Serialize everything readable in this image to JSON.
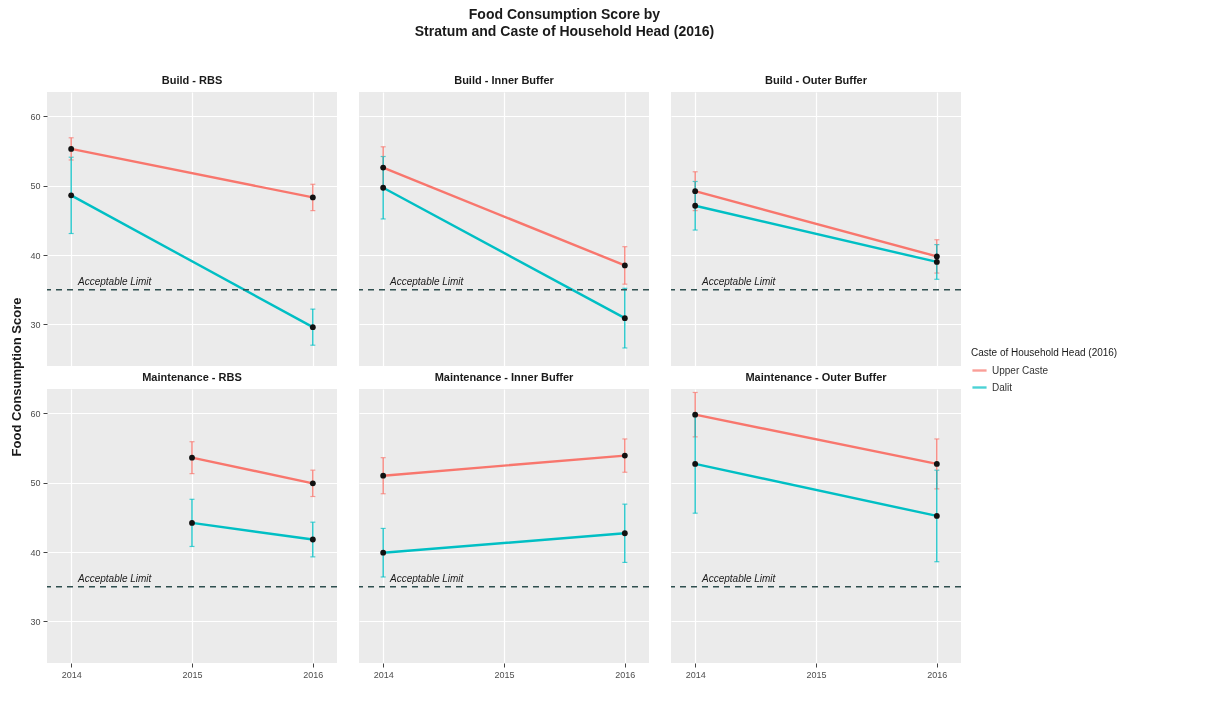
{
  "chart_data": [
    {
      "type": "other",
      "title": "Food Consumption Score by\nStratum and Caste of Household Head (2016)"
    },
    {
      "type": "line",
      "title": "Build - RBS",
      "ylabel": "Food Consumption Score",
      "legend": "right",
      "legend_title": "Caste of Household Head (2016)",
      "tick_labels": "y",
      "grid": true,
      "marker": "circle",
      "x": [
        2014,
        2016
      ],
      "xlim": [
        2013.8,
        2016.2
      ],
      "xticks": [
        2014,
        2015,
        2016
      ],
      "ylim": [
        24,
        63.5
      ],
      "yticks": [
        30,
        40,
        50,
        60
      ],
      "ref_lines": [
        {
          "axis": "y",
          "value": 35,
          "label": "Acceptable Limit",
          "color": "#2f4f4f",
          "line_style": "dashed"
        }
      ],
      "series": [
        {
          "name": "Upper Caste",
          "color": "#f8766d",
          "values": [
            55.3,
            48.3
          ],
          "errors": [
            1.6,
            1.9
          ]
        },
        {
          "name": "Dalit",
          "color": "#00bfc4",
          "values": [
            48.6,
            29.6
          ],
          "errors": [
            5.5,
            2.6
          ]
        }
      ]
    },
    {
      "type": "line",
      "title": "Build - Inner Buffer",
      "tick_labels": false,
      "grid": true,
      "marker": "circle",
      "x": [
        2014,
        2016
      ],
      "xlim": [
        2013.8,
        2016.2
      ],
      "xticks": [
        2014,
        2015,
        2016
      ],
      "ylim": [
        24,
        63.5
      ],
      "yticks": [
        30,
        40,
        50,
        60
      ],
      "ref_lines": [
        {
          "axis": "y",
          "value": 35,
          "label": "Acceptable Limit",
          "color": "#2f4f4f",
          "line_style": "dashed"
        }
      ],
      "series": [
        {
          "name": "Upper Caste",
          "color": "#f8766d",
          "values": [
            52.6,
            38.5
          ],
          "errors": [
            3.0,
            2.7
          ]
        },
        {
          "name": "Dalit",
          "color": "#00bfc4",
          "values": [
            49.7,
            30.9
          ],
          "errors": [
            4.5,
            4.3
          ]
        }
      ]
    },
    {
      "type": "line",
      "title": "Build - Outer Buffer",
      "tick_labels": false,
      "grid": true,
      "marker": "circle",
      "x": [
        2014,
        2016
      ],
      "xlim": [
        2013.8,
        2016.2
      ],
      "xticks": [
        2014,
        2015,
        2016
      ],
      "ylim": [
        24,
        63.5
      ],
      "yticks": [
        30,
        40,
        50,
        60
      ],
      "ref_lines": [
        {
          "axis": "y",
          "value": 35,
          "label": "Acceptable Limit",
          "color": "#2f4f4f",
          "line_style": "dashed"
        }
      ],
      "series": [
        {
          "name": "Upper Caste",
          "color": "#f8766d",
          "values": [
            49.2,
            39.8
          ],
          "errors": [
            2.8,
            2.4
          ]
        },
        {
          "name": "Dalit",
          "color": "#00bfc4",
          "values": [
            47.1,
            39.0
          ],
          "errors": [
            3.5,
            2.5
          ]
        }
      ]
    },
    {
      "type": "line",
      "title": "Maintenance - RBS",
      "grid": true,
      "marker": "circle",
      "x": [
        2015,
        2016
      ],
      "xlim": [
        2013.8,
        2016.2
      ],
      "xticks": [
        2014,
        2015,
        2016
      ],
      "ylim": [
        24,
        63.5
      ],
      "yticks": [
        30,
        40,
        50,
        60
      ],
      "ref_lines": [
        {
          "axis": "y",
          "value": 35,
          "label": "Acceptable Limit",
          "color": "#2f4f4f",
          "line_style": "dashed"
        }
      ],
      "series": [
        {
          "name": "Upper Caste",
          "color": "#f8766d",
          "values": [
            53.6,
            49.9
          ],
          "errors": [
            2.3,
            1.9
          ]
        },
        {
          "name": "Dalit",
          "color": "#00bfc4",
          "values": [
            44.2,
            41.8
          ],
          "errors": [
            3.4,
            2.5
          ]
        }
      ]
    },
    {
      "type": "line",
      "title": "Maintenance - Inner Buffer",
      "tick_labels": "x",
      "grid": true,
      "marker": "circle",
      "x": [
        2014,
        2016
      ],
      "xlim": [
        2013.8,
        2016.2
      ],
      "xticks": [
        2014,
        2015,
        2016
      ],
      "ylim": [
        24,
        63.5
      ],
      "yticks": [
        30,
        40,
        50,
        60
      ],
      "ref_lines": [
        {
          "axis": "y",
          "value": 35,
          "label": "Acceptable Limit",
          "color": "#2f4f4f",
          "line_style": "dashed"
        }
      ],
      "series": [
        {
          "name": "Upper Caste",
          "color": "#f8766d",
          "values": [
            51.0,
            53.9
          ],
          "errors": [
            2.6,
            2.4
          ]
        },
        {
          "name": "Dalit",
          "color": "#00bfc4",
          "values": [
            39.9,
            42.7
          ],
          "errors": [
            3.5,
            4.2
          ]
        }
      ]
    },
    {
      "type": "line",
      "title": "Maintenance - Outer Buffer",
      "tick_labels": "x",
      "grid": true,
      "marker": "circle",
      "x": [
        2014,
        2016
      ],
      "xlim": [
        2013.8,
        2016.2
      ],
      "xticks": [
        2014,
        2015,
        2016
      ],
      "ylim": [
        24,
        63.5
      ],
      "yticks": [
        30,
        40,
        50,
        60
      ],
      "ref_lines": [
        {
          "axis": "y",
          "value": 35,
          "label": "Acceptable Limit",
          "color": "#2f4f4f",
          "line_style": "dashed"
        }
      ],
      "series": [
        {
          "name": "Upper Caste",
          "color": "#f8766d",
          "values": [
            59.8,
            52.7
          ],
          "errors": [
            3.2,
            3.6
          ]
        },
        {
          "name": "Dalit",
          "color": "#00bfc4",
          "values": [
            52.7,
            45.2
          ],
          "errors": [
            7.1,
            6.6
          ]
        }
      ]
    }
  ]
}
